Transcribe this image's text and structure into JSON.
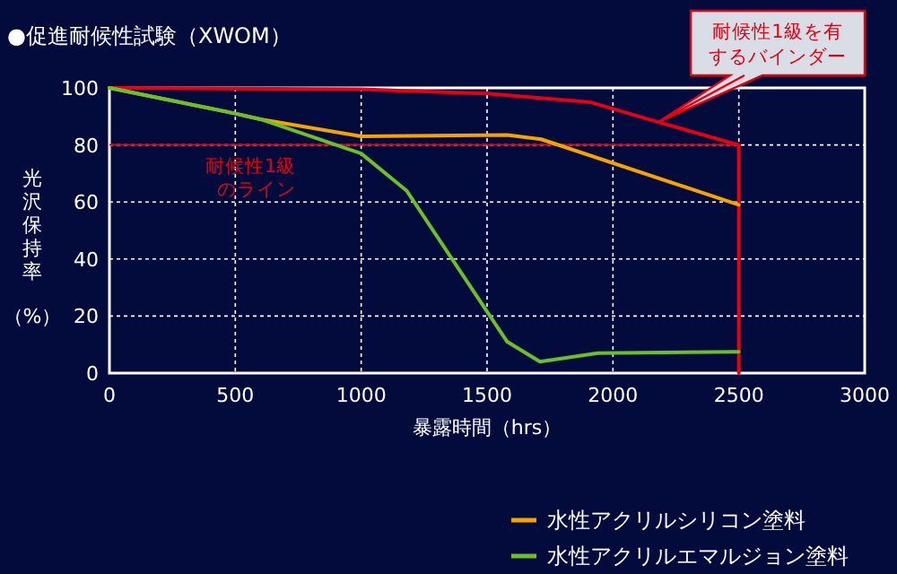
{
  "chart_data": {
    "type": "line",
    "title": "●促進耐候性試験（XWOM）",
    "xlabel": "暴露時間（hrs）",
    "ylabel": "光沢保持率（%）",
    "xlim": [
      0,
      3000
    ],
    "ylim": [
      0,
      100
    ],
    "xticks": [
      0,
      500,
      1000,
      1500,
      2000,
      2500,
      3000
    ],
    "yticks": [
      0,
      20,
      40,
      60,
      80,
      100
    ],
    "grid": true,
    "legend": "bottom right",
    "marker": "none",
    "line_style": "solid",
    "series": [
      {
        "color": "#e60012",
        "x": [
          0,
          1000,
          1500,
          1910,
          2180,
          2500,
          2500
        ],
        "values": [
          100,
          99.5,
          98,
          95,
          88,
          80,
          0
        ]
      },
      {
        "name": "水性アクリルシリコン塗料",
        "color": "#f5a300",
        "x": [
          0,
          500,
          600,
          1000,
          1580,
          1715,
          2500
        ],
        "values": [
          100,
          91,
          89,
          83,
          83.5,
          82,
          59
        ]
      },
      {
        "name": "水性アクリルエマルジョン塗料",
        "color": "#6abf2a",
        "x": [
          0,
          500,
          600,
          1000,
          1180,
          1580,
          1710,
          1940,
          2500
        ],
        "values": [
          100,
          91,
          89,
          77,
          64,
          11,
          4,
          7,
          7.5
        ]
      }
    ],
    "ref_lines": [
      {
        "axis": "y",
        "value": 80,
        "label": "耐候性1級のライン",
        "color": "#e60012",
        "line_style": "solid"
      }
    ],
    "annotations": [
      {
        "text": "耐候性1級を有するバインダー",
        "x": 2180,
        "y": 88
      }
    ]
  }
}
